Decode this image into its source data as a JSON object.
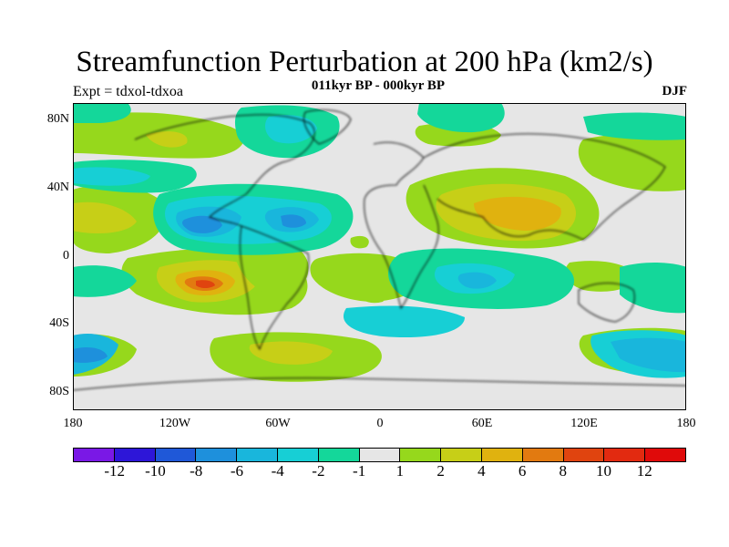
{
  "title": "Streamfunction Perturbation at 200 hPa (km2/s)",
  "subtitle": "011kyr BP - 000kyr BP",
  "left_label": "Expt = tdxol-tdxoa",
  "right_label": "DJF",
  "lat_labels": [
    "80N",
    "40N",
    "0",
    "40S",
    "80S"
  ],
  "lon_labels": [
    "180",
    "120W",
    "60W",
    "0",
    "60E",
    "120E",
    "180"
  ],
  "colorbar": {
    "labels": [
      "-12",
      "-10",
      "-8",
      "-6",
      "-4",
      "-2",
      "-1",
      "1",
      "2",
      "4",
      "6",
      "8",
      "10",
      "12"
    ],
    "colors": [
      "#7a18e6",
      "#2d16d8",
      "#1f58d8",
      "#1e90dc",
      "#19b6dc",
      "#17cfd5",
      "#14d79a",
      "#e6e6e6",
      "#96d81c",
      "#c7cf17",
      "#e0b20f",
      "#e27a10",
      "#e0440f",
      "#e22a10",
      "#e00a0a"
    ]
  },
  "colors": {
    "background": "#e6e6e6",
    "coast": "#000000"
  }
}
